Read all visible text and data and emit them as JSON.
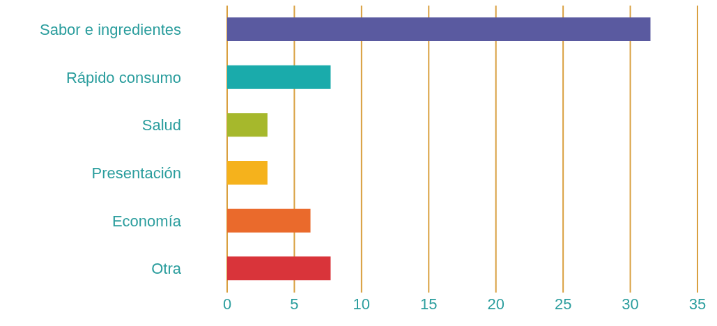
{
  "chart_data": {
    "type": "bar",
    "orientation": "horizontal",
    "categories": [
      "Sabor e ingredientes",
      "Rápido consumo",
      "Salud",
      "Presentación",
      "Economía",
      "Otra"
    ],
    "values": [
      31.5,
      7.7,
      3,
      3,
      6.2,
      7.7
    ],
    "colors": [
      "#5a5aa0",
      "#1aabab",
      "#a6b82c",
      "#f5b21c",
      "#ea6a2c",
      "#d9343a"
    ],
    "xlim": [
      0,
      35
    ],
    "xticks": [
      0,
      5,
      10,
      15,
      20,
      25,
      30,
      35
    ],
    "grid": "x"
  }
}
